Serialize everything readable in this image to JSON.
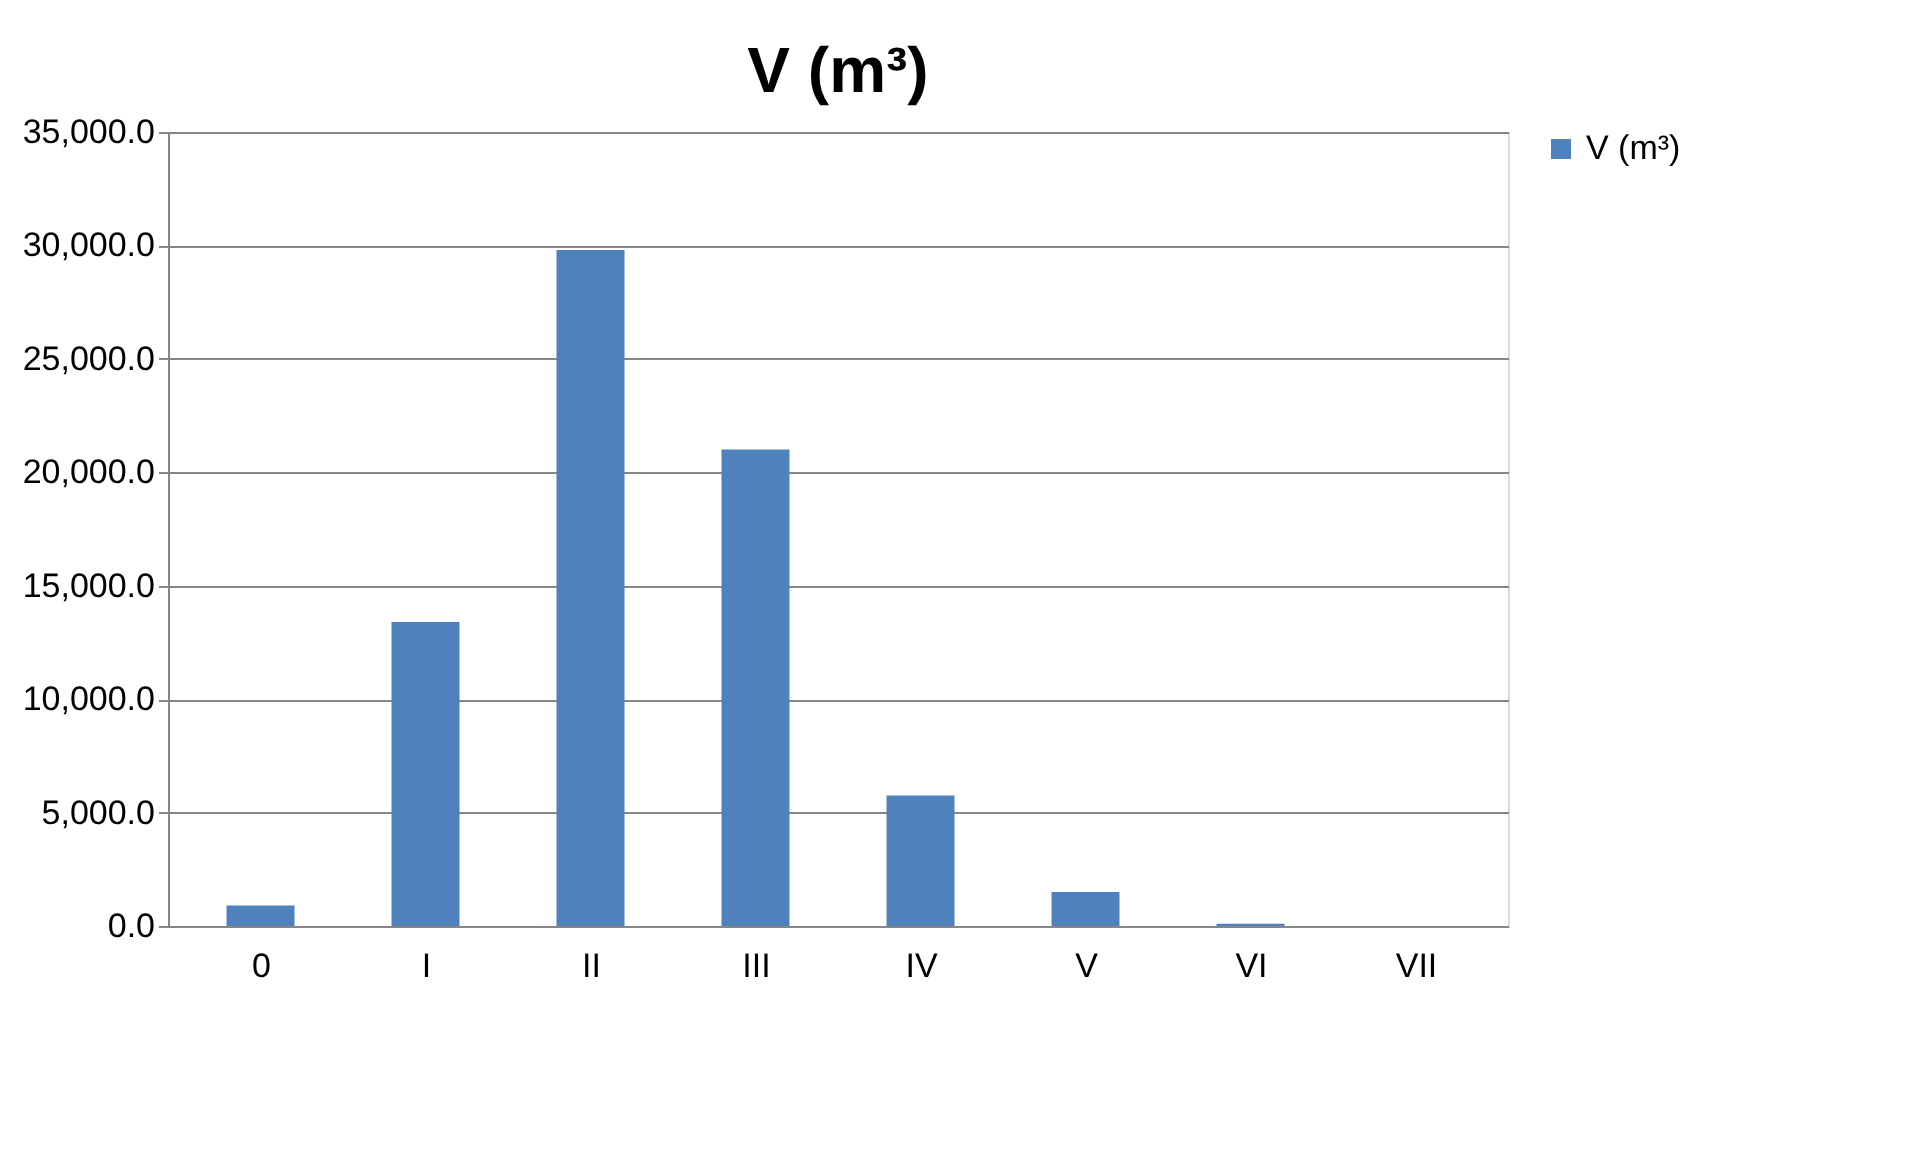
{
  "chart_data": {
    "type": "bar",
    "title": "V (m³)",
    "categories": [
      "0",
      "I",
      "II",
      "III",
      "IV",
      "V",
      "VI",
      "VII"
    ],
    "series": [
      {
        "name": "V (m³)",
        "color": "#4f81bd",
        "values": [
          900,
          13400,
          29800,
          21000,
          5750,
          1500,
          100,
          0
        ]
      }
    ],
    "ylim": [
      0,
      35000
    ],
    "yticks": [
      {
        "value": 0,
        "label": "0.0"
      },
      {
        "value": 5000,
        "label": "5,000.0"
      },
      {
        "value": 10000,
        "label": "10,000.0"
      },
      {
        "value": 15000,
        "label": "15,000.0"
      },
      {
        "value": 20000,
        "label": "20,000.0"
      },
      {
        "value": 25000,
        "label": "25,000.0"
      },
      {
        "value": 30000,
        "label": "30,000.0"
      },
      {
        "value": 35000,
        "label": "35,000.0"
      }
    ],
    "grid": "y",
    "legend": "right"
  }
}
